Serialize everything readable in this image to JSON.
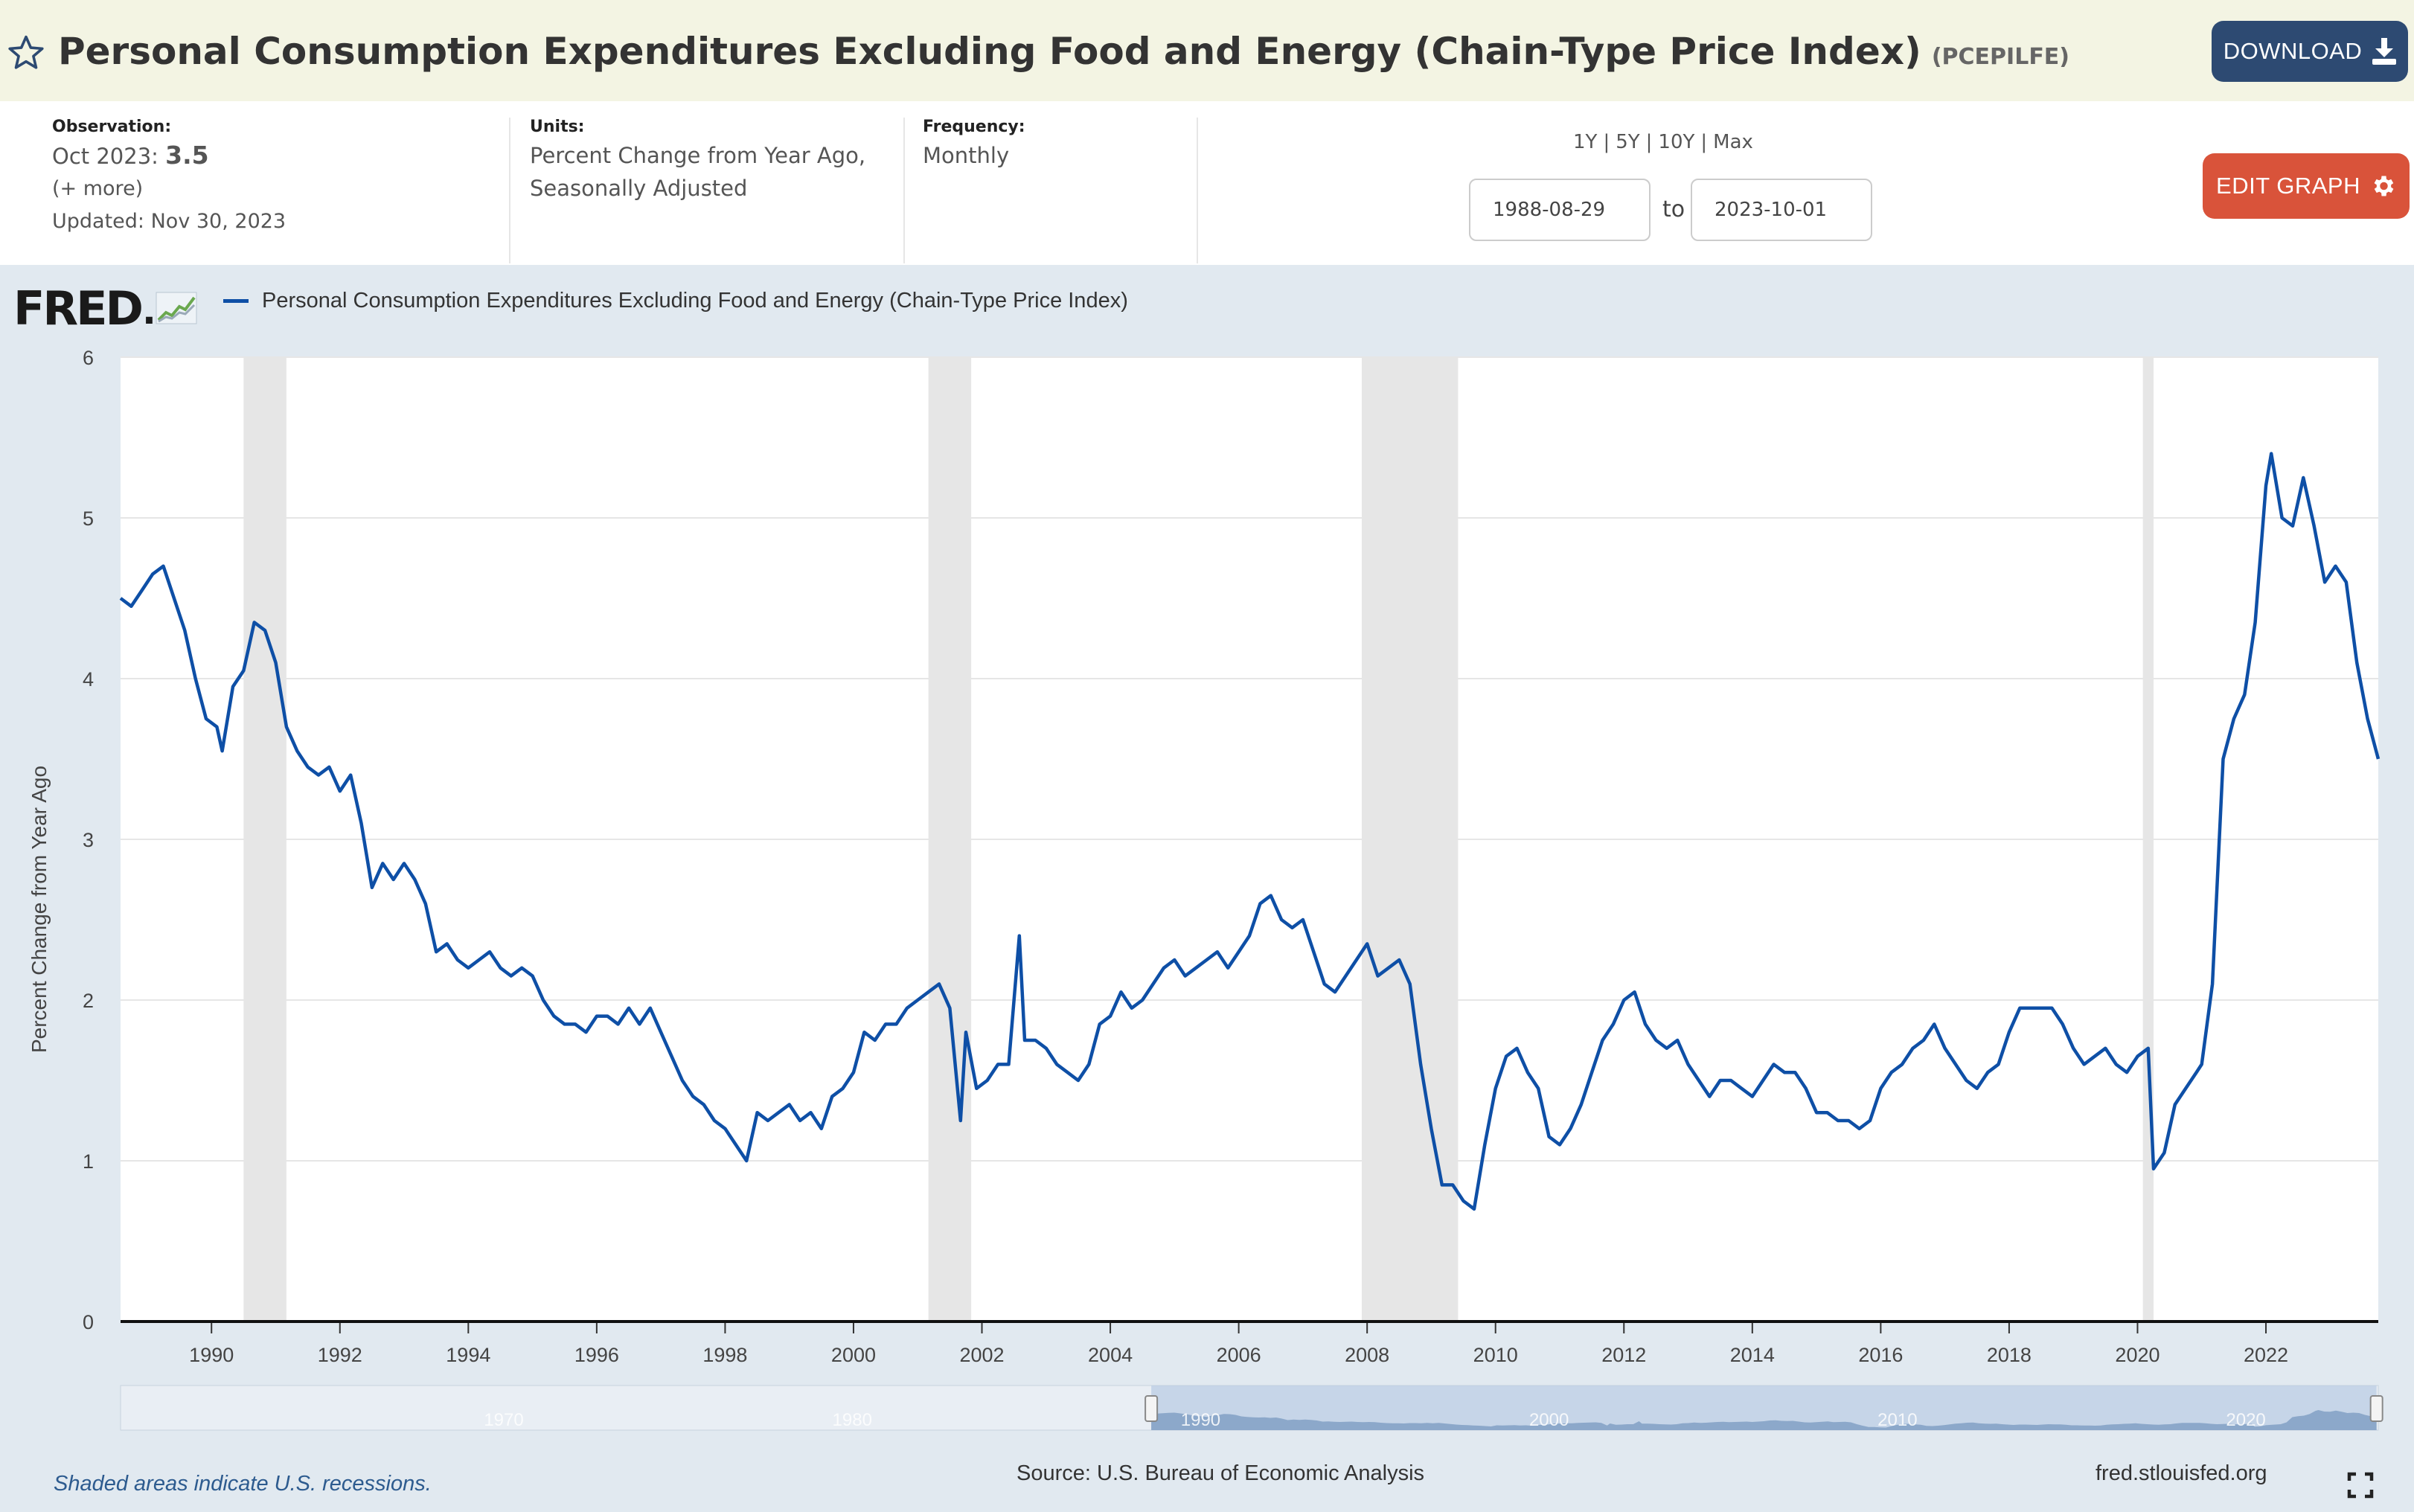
{
  "header": {
    "title": "Personal Consumption Expenditures Excluding Food and Energy (Chain-Type Price Index)",
    "series_id": "(PCEPILFE)",
    "download_label": "DOWNLOAD",
    "star_icon": "star-outline-icon",
    "download_icon": "download-icon"
  },
  "meta": {
    "observation_label": "Observation:",
    "observation_date": "Oct 2023:",
    "observation_value": "3.5",
    "more_link": "(+ more)",
    "updated": "Updated: Nov 30, 2023",
    "units_label": "Units:",
    "units_line1": "Percent Change from Year Ago,",
    "units_line2": "Seasonally Adjusted",
    "frequency_label": "Frequency:",
    "frequency_value": "Monthly"
  },
  "range": {
    "links": [
      "1Y",
      "5Y",
      "10Y",
      "Max"
    ],
    "separator": "|",
    "start_date": "1988-08-29",
    "end_date": "2023-10-01",
    "to_label": "to"
  },
  "edit_label": "EDIT GRAPH",
  "edit_icon": "gear-icon",
  "colors": {
    "series": "#0e4fa6",
    "recession": "#e6e6e6",
    "title_bar": "#f3f4e3",
    "download_btn": "#2d4a72",
    "edit_btn": "#d9533a",
    "chart_bg": "#e1e9f0"
  },
  "logo_text": "FRED",
  "footer": {
    "note": "Shaded areas indicate U.S. recessions.",
    "source": "Source: U.S. Bureau of Economic Analysis",
    "site": "fred.stlouisfed.org"
  },
  "chart_data": {
    "type": "line",
    "title": "",
    "ylabel": "Percent Change from Year Ago",
    "xlabel": "",
    "ylim": [
      0,
      6
    ],
    "xlim": [
      "1988-08",
      "2023-10"
    ],
    "yticks": [
      "0",
      "1",
      "2",
      "3",
      "4",
      "5",
      "6"
    ],
    "xticks": [
      "1990",
      "1992",
      "1994",
      "1996",
      "1998",
      "2000",
      "2002",
      "2004",
      "2006",
      "2008",
      "2010",
      "2012",
      "2014",
      "2016",
      "2018",
      "2020",
      "2022"
    ],
    "grid": "horizontal",
    "legend_position": "top-left",
    "recessions": [
      [
        "1990-07",
        "1991-03"
      ],
      [
        "2001-03",
        "2001-11"
      ],
      [
        "2007-12",
        "2009-06"
      ],
      [
        "2020-02",
        "2020-04"
      ]
    ],
    "navigator_ticks": [
      "1970",
      "1980",
      "1990",
      "2000",
      "2010",
      "2020"
    ],
    "series": [
      {
        "name": "Personal Consumption Expenditures Excluding Food and Energy (Chain-Type Price Index)",
        "points": [
          [
            "1988-08",
            4.5
          ],
          [
            "1988-10",
            4.45
          ],
          [
            "1988-12",
            4.55
          ],
          [
            "1989-02",
            4.65
          ],
          [
            "1989-04",
            4.7
          ],
          [
            "1989-06",
            4.5
          ],
          [
            "1989-08",
            4.3
          ],
          [
            "1989-10",
            4.0
          ],
          [
            "1989-12",
            3.75
          ],
          [
            "1990-02",
            3.7
          ],
          [
            "1990-03",
            3.55
          ],
          [
            "1990-05",
            3.95
          ],
          [
            "1990-07",
            4.05
          ],
          [
            "1990-09",
            4.35
          ],
          [
            "1990-11",
            4.3
          ],
          [
            "1991-01",
            4.1
          ],
          [
            "1991-03",
            3.7
          ],
          [
            "1991-05",
            3.55
          ],
          [
            "1991-07",
            3.45
          ],
          [
            "1991-09",
            3.4
          ],
          [
            "1991-11",
            3.45
          ],
          [
            "1992-01",
            3.3
          ],
          [
            "1992-03",
            3.4
          ],
          [
            "1992-05",
            3.1
          ],
          [
            "1992-07",
            2.7
          ],
          [
            "1992-09",
            2.85
          ],
          [
            "1992-11",
            2.75
          ],
          [
            "1993-01",
            2.85
          ],
          [
            "1993-03",
            2.75
          ],
          [
            "1993-05",
            2.6
          ],
          [
            "1993-07",
            2.3
          ],
          [
            "1993-09",
            2.35
          ],
          [
            "1993-11",
            2.25
          ],
          [
            "1994-01",
            2.2
          ],
          [
            "1994-03",
            2.25
          ],
          [
            "1994-05",
            2.3
          ],
          [
            "1994-07",
            2.2
          ],
          [
            "1994-09",
            2.15
          ],
          [
            "1994-11",
            2.2
          ],
          [
            "1995-01",
            2.15
          ],
          [
            "1995-03",
            2.0
          ],
          [
            "1995-05",
            1.9
          ],
          [
            "1995-07",
            1.85
          ],
          [
            "1995-09",
            1.85
          ],
          [
            "1995-11",
            1.8
          ],
          [
            "1996-01",
            1.9
          ],
          [
            "1996-03",
            1.9
          ],
          [
            "1996-05",
            1.85
          ],
          [
            "1996-07",
            1.95
          ],
          [
            "1996-09",
            1.85
          ],
          [
            "1996-11",
            1.95
          ],
          [
            "1997-01",
            1.8
          ],
          [
            "1997-03",
            1.65
          ],
          [
            "1997-05",
            1.5
          ],
          [
            "1997-07",
            1.4
          ],
          [
            "1997-09",
            1.35
          ],
          [
            "1997-11",
            1.25
          ],
          [
            "1998-01",
            1.2
          ],
          [
            "1998-03",
            1.1
          ],
          [
            "1998-05",
            1.0
          ],
          [
            "1998-07",
            1.3
          ],
          [
            "1998-09",
            1.25
          ],
          [
            "1998-11",
            1.3
          ],
          [
            "1999-01",
            1.35
          ],
          [
            "1999-03",
            1.25
          ],
          [
            "1999-05",
            1.3
          ],
          [
            "1999-07",
            1.2
          ],
          [
            "1999-09",
            1.4
          ],
          [
            "1999-11",
            1.45
          ],
          [
            "2000-01",
            1.55
          ],
          [
            "2000-03",
            1.8
          ],
          [
            "2000-05",
            1.75
          ],
          [
            "2000-07",
            1.85
          ],
          [
            "2000-09",
            1.85
          ],
          [
            "2000-11",
            1.95
          ],
          [
            "2001-01",
            2.0
          ],
          [
            "2001-03",
            2.05
          ],
          [
            "2001-05",
            2.1
          ],
          [
            "2001-07",
            1.95
          ],
          [
            "2001-09",
            1.25
          ],
          [
            "2001-10",
            1.8
          ],
          [
            "2001-12",
            1.45
          ],
          [
            "2002-02",
            1.5
          ],
          [
            "2002-04",
            1.6
          ],
          [
            "2002-06",
            1.6
          ],
          [
            "2002-08",
            2.4
          ],
          [
            "2002-09",
            1.75
          ],
          [
            "2002-11",
            1.75
          ],
          [
            "2003-01",
            1.7
          ],
          [
            "2003-03",
            1.6
          ],
          [
            "2003-05",
            1.55
          ],
          [
            "2003-07",
            1.5
          ],
          [
            "2003-09",
            1.6
          ],
          [
            "2003-11",
            1.85
          ],
          [
            "2004-01",
            1.9
          ],
          [
            "2004-03",
            2.05
          ],
          [
            "2004-05",
            1.95
          ],
          [
            "2004-07",
            2.0
          ],
          [
            "2004-09",
            2.1
          ],
          [
            "2004-11",
            2.2
          ],
          [
            "2005-01",
            2.25
          ],
          [
            "2005-03",
            2.15
          ],
          [
            "2005-05",
            2.2
          ],
          [
            "2005-07",
            2.25
          ],
          [
            "2005-09",
            2.3
          ],
          [
            "2005-11",
            2.2
          ],
          [
            "2006-01",
            2.3
          ],
          [
            "2006-03",
            2.4
          ],
          [
            "2006-05",
            2.6
          ],
          [
            "2006-07",
            2.65
          ],
          [
            "2006-09",
            2.5
          ],
          [
            "2006-11",
            2.45
          ],
          [
            "2007-01",
            2.5
          ],
          [
            "2007-03",
            2.3
          ],
          [
            "2007-05",
            2.1
          ],
          [
            "2007-07",
            2.05
          ],
          [
            "2007-09",
            2.15
          ],
          [
            "2007-11",
            2.25
          ],
          [
            "2008-01",
            2.35
          ],
          [
            "2008-03",
            2.15
          ],
          [
            "2008-05",
            2.2
          ],
          [
            "2008-07",
            2.25
          ],
          [
            "2008-09",
            2.1
          ],
          [
            "2008-11",
            1.6
          ],
          [
            "2009-01",
            1.2
          ],
          [
            "2009-03",
            0.85
          ],
          [
            "2009-05",
            0.85
          ],
          [
            "2009-07",
            0.75
          ],
          [
            "2009-09",
            0.7
          ],
          [
            "2009-11",
            1.1
          ],
          [
            "2010-01",
            1.45
          ],
          [
            "2010-03",
            1.65
          ],
          [
            "2010-05",
            1.7
          ],
          [
            "2010-07",
            1.55
          ],
          [
            "2010-09",
            1.45
          ],
          [
            "2010-11",
            1.15
          ],
          [
            "2011-01",
            1.1
          ],
          [
            "2011-03",
            1.2
          ],
          [
            "2011-05",
            1.35
          ],
          [
            "2011-07",
            1.55
          ],
          [
            "2011-09",
            1.75
          ],
          [
            "2011-11",
            1.85
          ],
          [
            "2012-01",
            2.0
          ],
          [
            "2012-03",
            2.05
          ],
          [
            "2012-05",
            1.85
          ],
          [
            "2012-07",
            1.75
          ],
          [
            "2012-09",
            1.7
          ],
          [
            "2012-11",
            1.75
          ],
          [
            "2013-01",
            1.6
          ],
          [
            "2013-03",
            1.5
          ],
          [
            "2013-05",
            1.4
          ],
          [
            "2013-07",
            1.5
          ],
          [
            "2013-09",
            1.5
          ],
          [
            "2013-11",
            1.45
          ],
          [
            "2014-01",
            1.4
          ],
          [
            "2014-03",
            1.5
          ],
          [
            "2014-05",
            1.6
          ],
          [
            "2014-07",
            1.55
          ],
          [
            "2014-09",
            1.55
          ],
          [
            "2014-11",
            1.45
          ],
          [
            "2015-01",
            1.3
          ],
          [
            "2015-03",
            1.3
          ],
          [
            "2015-05",
            1.25
          ],
          [
            "2015-07",
            1.25
          ],
          [
            "2015-09",
            1.2
          ],
          [
            "2015-11",
            1.25
          ],
          [
            "2016-01",
            1.45
          ],
          [
            "2016-03",
            1.55
          ],
          [
            "2016-05",
            1.6
          ],
          [
            "2016-07",
            1.7
          ],
          [
            "2016-09",
            1.75
          ],
          [
            "2016-11",
            1.85
          ],
          [
            "2017-01",
            1.7
          ],
          [
            "2017-03",
            1.6
          ],
          [
            "2017-05",
            1.5
          ],
          [
            "2017-07",
            1.45
          ],
          [
            "2017-09",
            1.55
          ],
          [
            "2017-11",
            1.6
          ],
          [
            "2018-01",
            1.8
          ],
          [
            "2018-03",
            1.95
          ],
          [
            "2018-05",
            1.95
          ],
          [
            "2018-07",
            1.95
          ],
          [
            "2018-09",
            1.95
          ],
          [
            "2018-11",
            1.85
          ],
          [
            "2019-01",
            1.7
          ],
          [
            "2019-03",
            1.6
          ],
          [
            "2019-05",
            1.65
          ],
          [
            "2019-07",
            1.7
          ],
          [
            "2019-09",
            1.6
          ],
          [
            "2019-11",
            1.55
          ],
          [
            "2020-01",
            1.65
          ],
          [
            "2020-03",
            1.7
          ],
          [
            "2020-04",
            0.95
          ],
          [
            "2020-06",
            1.05
          ],
          [
            "2020-08",
            1.35
          ],
          [
            "2020-10",
            1.45
          ],
          [
            "2020-12",
            1.55
          ],
          [
            "2021-01",
            1.6
          ],
          [
            "2021-03",
            2.1
          ],
          [
            "2021-05",
            3.5
          ],
          [
            "2021-07",
            3.75
          ],
          [
            "2021-09",
            3.9
          ],
          [
            "2021-11",
            4.35
          ],
          [
            "2022-01",
            5.2
          ],
          [
            "2022-02",
            5.4
          ],
          [
            "2022-04",
            5.0
          ],
          [
            "2022-06",
            4.95
          ],
          [
            "2022-08",
            5.25
          ],
          [
            "2022-10",
            4.95
          ],
          [
            "2022-12",
            4.6
          ],
          [
            "2023-02",
            4.7
          ],
          [
            "2023-04",
            4.6
          ],
          [
            "2023-06",
            4.1
          ],
          [
            "2023-08",
            3.75
          ],
          [
            "2023-10",
            3.5
          ]
        ]
      }
    ]
  }
}
